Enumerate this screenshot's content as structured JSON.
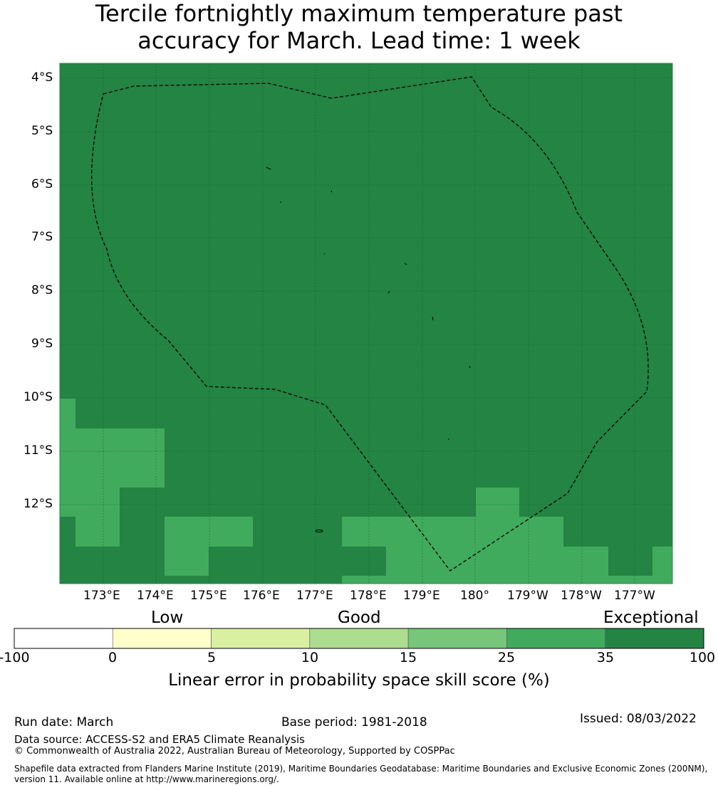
{
  "title": {
    "line1": "Tercile fortnightly maximum temperature past",
    "line2": "accuracy for March. Lead time: 1 week"
  },
  "map": {
    "lat_labels": [
      "4°S",
      "5°S",
      "6°S",
      "7°S",
      "8°S",
      "9°S",
      "10°S",
      "11°S",
      "12°S"
    ],
    "lon_labels": [
      "173°E",
      "174°E",
      "175°E",
      "176°E",
      "177°E",
      "178°E",
      "179°E",
      "180°",
      "179°W",
      "178°W",
      "177°W"
    ],
    "background_color": "#238443",
    "patch_color": "#41ab5d",
    "boundary_color": "#000000"
  },
  "colorbar": {
    "categories": [
      "Low",
      "Good",
      "Exceptional"
    ],
    "ticks": [
      "-100",
      "0",
      "5",
      "10",
      "15",
      "25",
      "35",
      "100"
    ],
    "colors": [
      "#ffffff",
      "#ffffcc",
      "#d9f0a3",
      "#addd8e",
      "#78c679",
      "#41ab5d",
      "#238443"
    ],
    "label": "Linear error in probability space skill score (%)"
  },
  "footer": {
    "run_date": "Run date: March",
    "base_period": "Base period: 1981-2018",
    "issued": "Issued: 08/03/2022",
    "data_source": "Data source: ACCESS-S2 and ERA5 Climate Reanalysis",
    "copyright": "© Commonwealth of Australia 2022, Australian Bureau of Meteorology, Supported by COSPPac",
    "shapefile": "Shapefile data extracted from Flanders Marine Institute (2019), Maritime Boundaries Geodatabase: Maritime Boundaries and Exclusive Economic Zones (200NM), version 11. Available online at http://www.marineregions.org/."
  }
}
